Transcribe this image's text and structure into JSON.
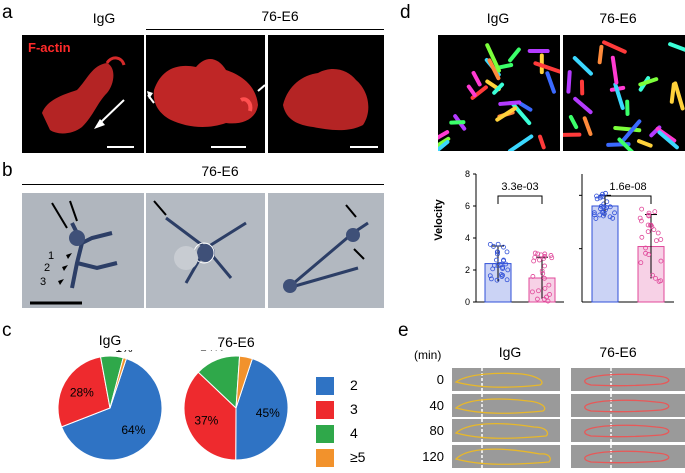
{
  "panels": {
    "a": {
      "letter": "a",
      "headers": [
        "IgG",
        "76-E6"
      ],
      "stain_label": "F-actin"
    },
    "b": {
      "letter": "b",
      "header": "76-E6",
      "arrowhead_labels": [
        "1",
        "2",
        "3"
      ]
    },
    "c": {
      "letter": "c",
      "titles": [
        "IgG",
        "76-E6"
      ],
      "legend": [
        {
          "label": "2",
          "color": "#2f73c4"
        },
        {
          "label": "3",
          "color": "#ee2a2e"
        },
        {
          "label": "4",
          "color": "#2fa84a"
        },
        {
          "label": "≥5",
          "color": "#f2922c"
        }
      ]
    },
    "d": {
      "letter": "d",
      "image_headers": [
        "IgG",
        "76-E6"
      ]
    },
    "e": {
      "letter": "e",
      "unit_label": "(min)",
      "headers": [
        "IgG",
        "76-E6"
      ],
      "time_labels": [
        "0",
        "40",
        "80",
        "120"
      ]
    }
  },
  "chart_data": [
    {
      "type": "pie",
      "title": "IgG",
      "categories": [
        "2",
        "3",
        "4",
        "≥5"
      ],
      "values": [
        64,
        28,
        7,
        1
      ],
      "labels": [
        "64%",
        "28%",
        "7%",
        "1%"
      ]
    },
    {
      "type": "pie",
      "title": "76-E6",
      "categories": [
        "2",
        "3",
        "4",
        "≥5"
      ],
      "values": [
        45,
        37,
        14,
        4
      ],
      "labels": [
        "45%",
        "37%",
        "14%",
        "4%"
      ]
    },
    {
      "type": "bar",
      "categories": [
        "IgG",
        "76-E6"
      ],
      "values": [
        2.4,
        1.5
      ],
      "errors": [
        1.1,
        1.3
      ],
      "ylabel": "Velocity",
      "ylim": [
        0,
        8
      ],
      "yticks": [
        "0",
        "2",
        "4",
        "6",
        "8"
      ],
      "p_value": "3.3e-03",
      "colors": [
        "#2f4fd8",
        "#e0489a"
      ]
    },
    {
      "type": "bar",
      "categories": [
        "IgG",
        "76-E6"
      ],
      "values": [
        0.9,
        0.52
      ],
      "errors": [
        0.1,
        0.3
      ],
      "ylim": [
        0,
        1.2
      ],
      "p_value": "1.6e-08",
      "colors": [
        "#2f4fd8",
        "#e0489a"
      ]
    }
  ]
}
